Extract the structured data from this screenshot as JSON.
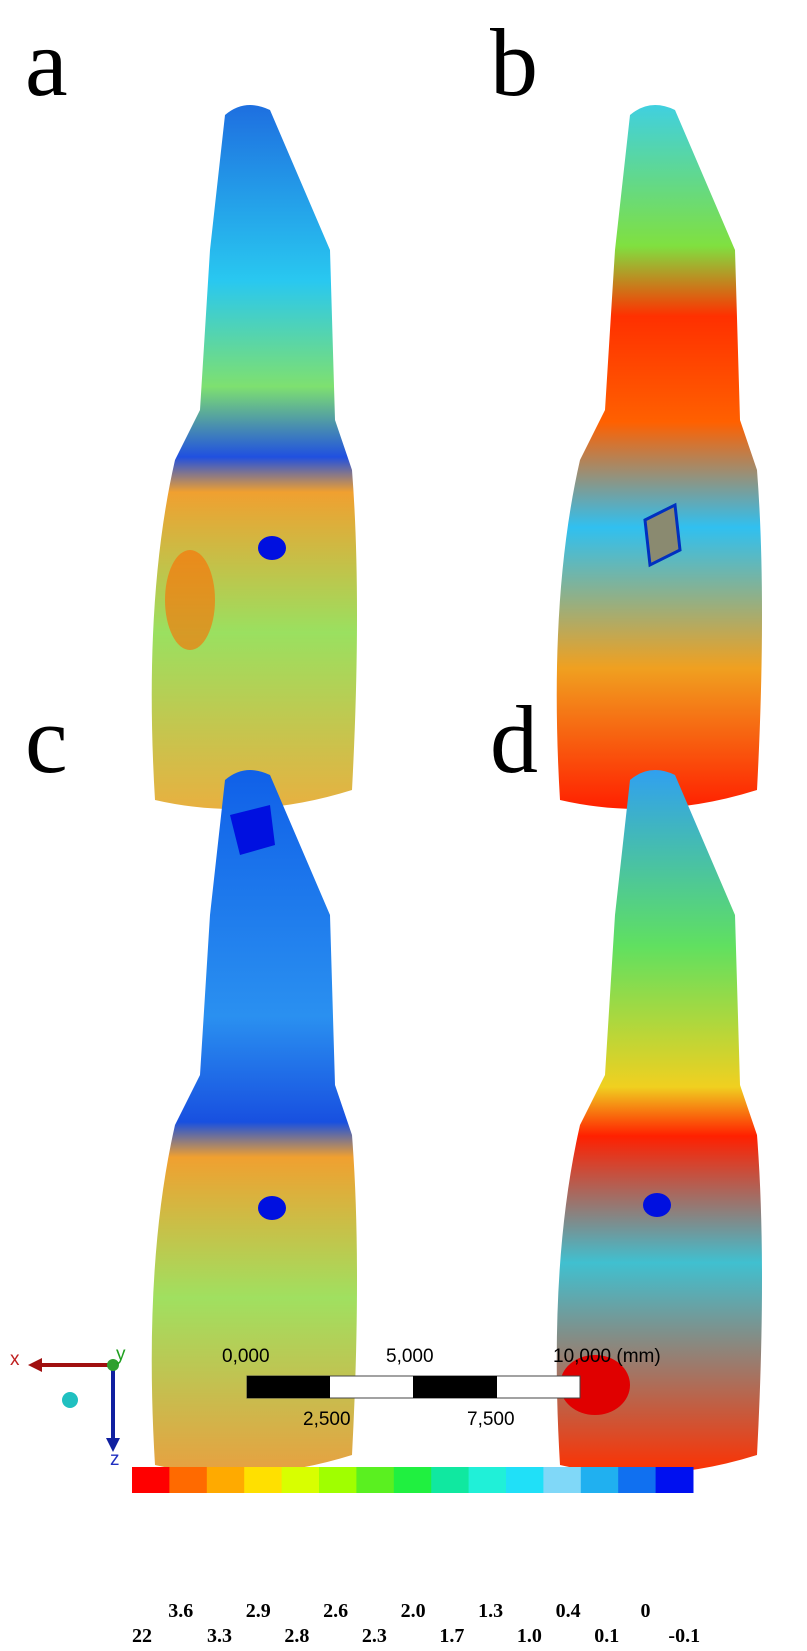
{
  "panels": [
    {
      "label": "a"
    },
    {
      "label": "b"
    },
    {
      "label": "c"
    },
    {
      "label": "d"
    }
  ],
  "axes": {
    "x": "x",
    "y": "y",
    "z": "z"
  },
  "scale_bar": {
    "top_labels": [
      "0,000",
      "5,000",
      "10,000 (mm)"
    ],
    "bottom_labels": [
      "2,500",
      "7,500"
    ]
  },
  "colorbar": {
    "colors": [
      "#ff0000",
      "#ff6a00",
      "#ffaa00",
      "#ffe000",
      "#d8ff00",
      "#a0ff00",
      "#5af020",
      "#20f040",
      "#10e8a0",
      "#20f0d8",
      "#20e0f8",
      "#80d8f8",
      "#20b0f0",
      "#1070f0",
      "#0010f0"
    ],
    "labels": [
      "22",
      "3.6",
      "3.3",
      "2.9",
      "2.8",
      "2.6",
      "2.3",
      "2.0",
      "1.7",
      "1.3",
      "1.0",
      "0.4",
      "0.1",
      "0",
      "-0.1"
    ]
  }
}
